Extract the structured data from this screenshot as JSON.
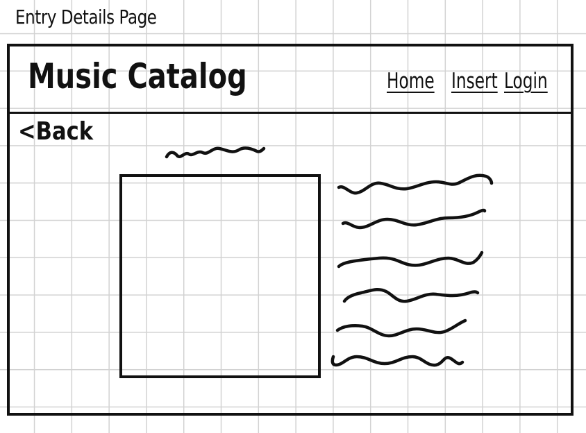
{
  "sheet": {
    "title": "Entry Details Page"
  },
  "header": {
    "app_title": "Music Catalog",
    "nav": {
      "home": "Home",
      "insert": "Insert",
      "login": "Login"
    }
  },
  "main": {
    "back_label": "<Back"
  }
}
